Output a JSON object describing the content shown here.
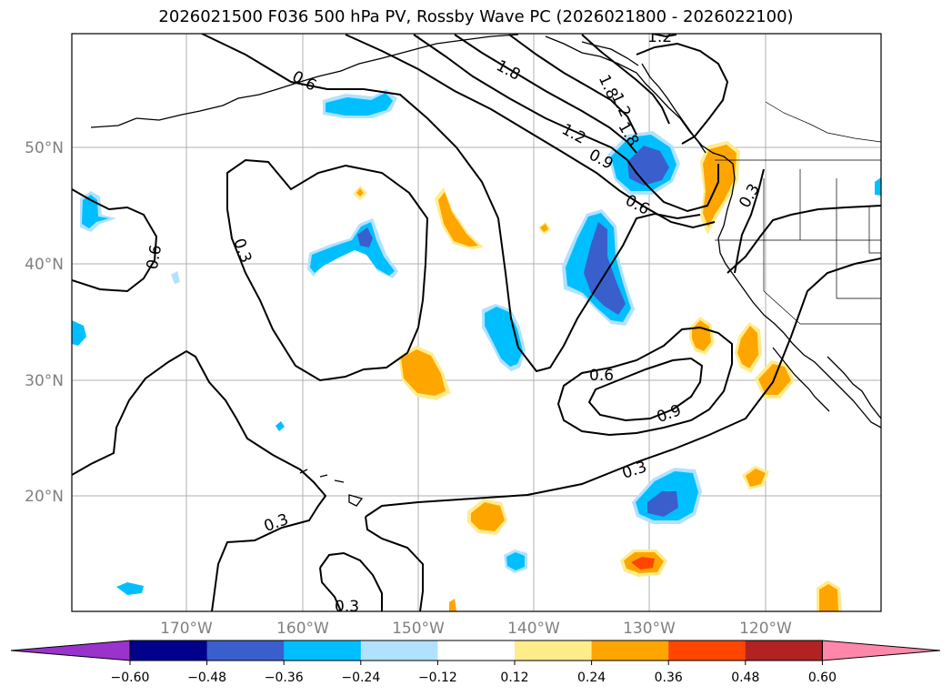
{
  "title": "2026021500 F036 500 hPa PV, Rossby Wave PC (2026021800 - 2026022100)",
  "latitude_labels": [
    "50°N",
    "40°N",
    "30°N",
    "20°N"
  ],
  "longitude_labels": [
    "170°W",
    "160°W",
    "150°W",
    "140°W",
    "130°W",
    "120°W"
  ],
  "contour_labels": [
    "0.6",
    "1.8",
    "1.2",
    "1.2",
    "1.8",
    "1.2",
    "1.8",
    "0.9",
    "0.6",
    "0.3",
    "0.6",
    "0.3",
    "0.6",
    "0.9",
    "0.3",
    "0.3",
    "0.3"
  ],
  "colorbar": {
    "tick_labels": [
      "−0.60",
      "−0.48",
      "−0.36",
      "−0.24",
      "−0.12",
      "0.12",
      "0.24",
      "0.36",
      "0.48",
      "0.60"
    ],
    "colors": [
      "#9933cc",
      "#00008b",
      "#3a5fcd",
      "#00bfff",
      "#b0e2ff",
      "#ffffff",
      "#ffec8b",
      "#ffa500",
      "#ff4500",
      "#b22222",
      "#ff88aa"
    ]
  },
  "fill_colors": {
    "neg_light": "#b0e2ff",
    "neg_mid": "#00bfff",
    "neg_dark": "#3a5fcd",
    "pos_light": "#ffec8b",
    "pos_mid": "#ffa500",
    "pos_dark": "#ff4500"
  }
}
